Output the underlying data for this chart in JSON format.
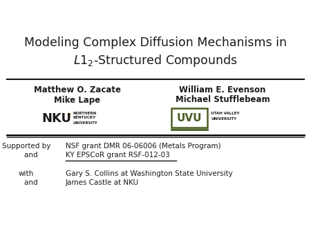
{
  "bg_color": "#ffffff",
  "title_line1": "Modeling Complex Diffusion Mechanisms in",
  "title_line2": "$\\mathit{L}1_2$-Structured Compounds",
  "author_left_1": "Matthew O. Zacate",
  "author_left_2": "Mike Lape",
  "author_right_1": "William E. Evenson",
  "author_right_2": "Michael Stufflebeam",
  "support_label1": "Supported by",
  "support_label2": "    and",
  "support_text1": "NSF grant DMR 06-06006 (Metals Program)",
  "support_text2": "KY EPSCoR grant RSF-012-03",
  "collab_label1": "with",
  "collab_label2": "    and",
  "collab_text1": "Gary S. Collins at Washington State University",
  "collab_text2": "James Castle at NKU",
  "line_color": "#111111",
  "text_color": "#1a1a1a",
  "uvu_green": "#4a5e23",
  "nku_gold": "#e8a020"
}
